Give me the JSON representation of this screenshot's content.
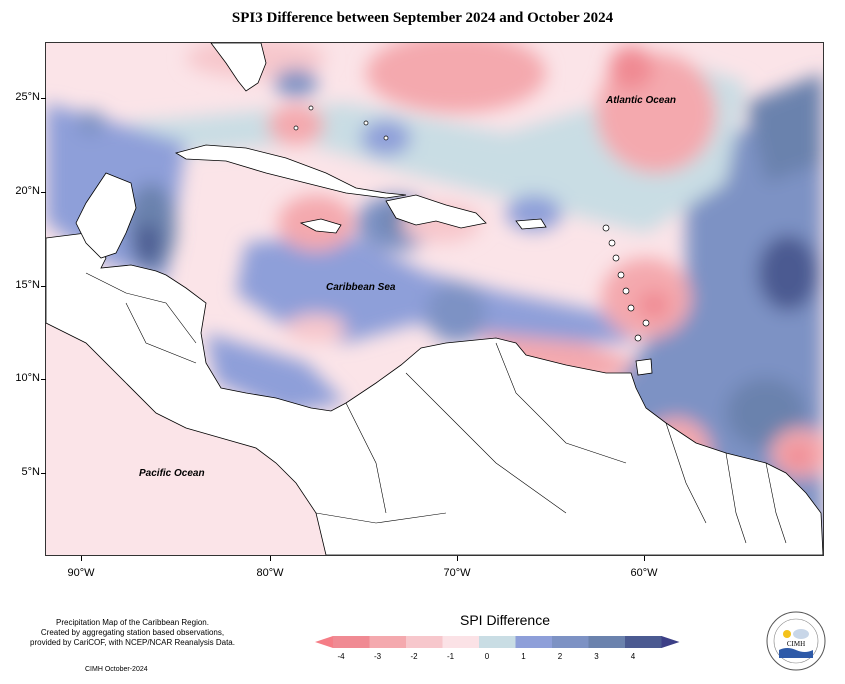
{
  "title": "SPI3 Difference between September 2024 and October 2024",
  "map": {
    "lat_ticks": [
      "25°N",
      "20°N",
      "15°N",
      "10°N",
      "5°N"
    ],
    "lon_ticks": [
      "90°W",
      "80°W",
      "70°W",
      "60°W"
    ],
    "ocean_labels": {
      "atlantic": "Atlantic Ocean",
      "caribbean": "Caribbean Sea",
      "pacific": "Pacific Ocean"
    }
  },
  "legend": {
    "title": "SPI Difference",
    "ticks": [
      "-4",
      "-3",
      "-2",
      "-1",
      "0",
      "1",
      "2",
      "3",
      "4"
    ],
    "colors": [
      "#f08a93",
      "#f4a9ae",
      "#f7c7cc",
      "#fbe2e6",
      "#c9dde4",
      "#8e9fd9",
      "#7d92c4",
      "#6b82ad",
      "#4b5a91"
    ],
    "low_arrow_color": "#f57d86",
    "high_arrow_color": "#3c3f86"
  },
  "credits": {
    "line1": "Precipitation Map of the Caribbean Region.",
    "line2": "Created by aggregating station based observations,",
    "line3": "provided by CariCOF, with NCEP/NCAR Reanalysis Data.",
    "date": "CIMH October-2024"
  },
  "logo": {
    "label": "CIMH",
    "icon": "cimh-logo-icon"
  }
}
